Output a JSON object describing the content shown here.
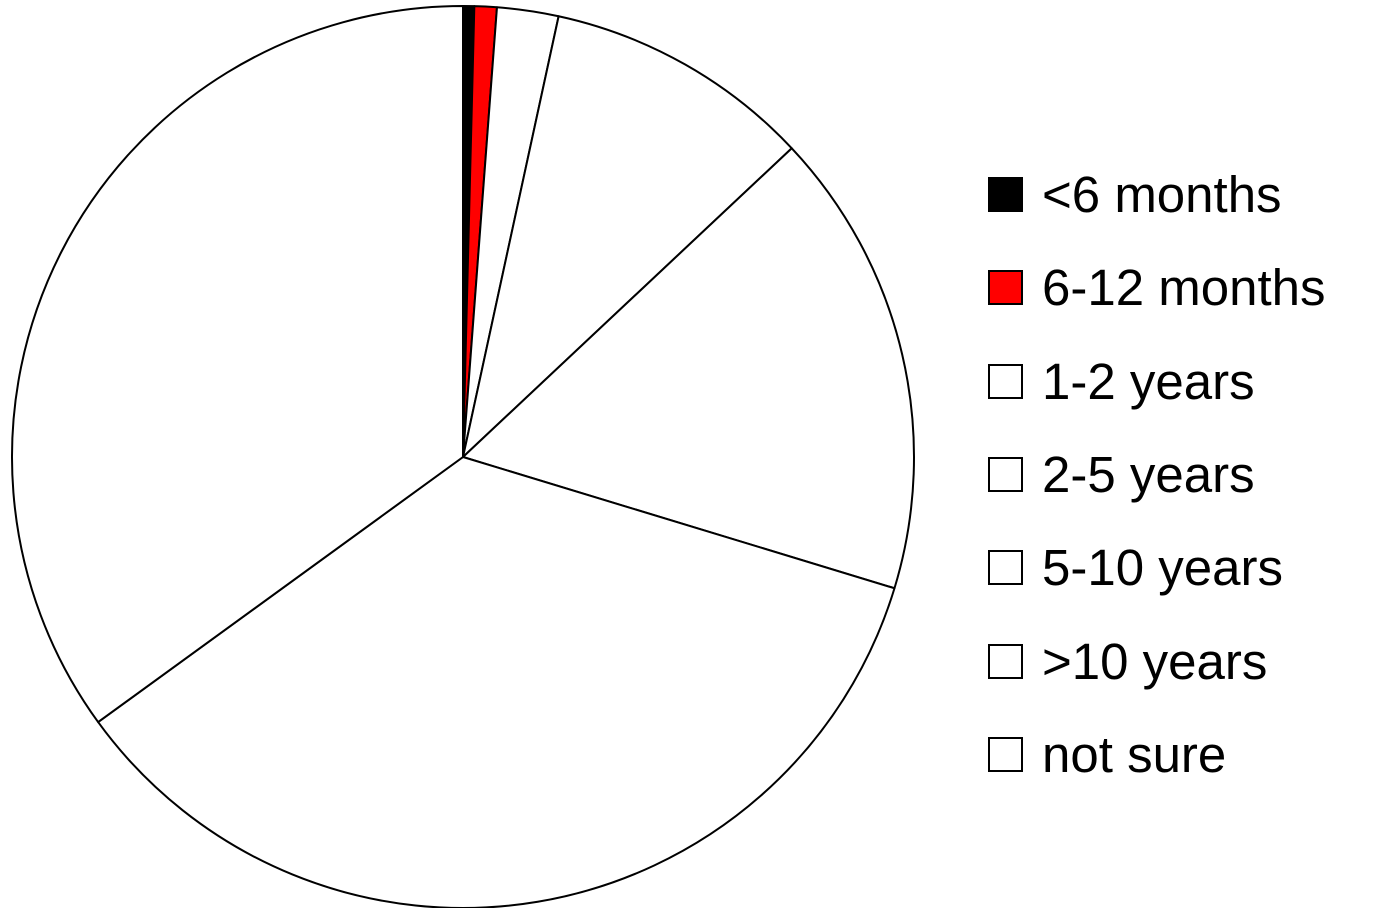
{
  "chart_data": {
    "type": "pie",
    "title": "",
    "start_angle": "12 o'clock",
    "direction": "clockwise",
    "legend_position": "right",
    "series": [
      {
        "categories": [
          "<6 months",
          "6-12 months",
          "1-2 years",
          "2-5 years",
          "5-10 years",
          ">10 years",
          "not sure"
        ],
        "values": [
          0.4,
          0.8,
          2.2,
          9.6,
          16.7,
          35.3,
          35.0
        ],
        "unit": "percent of total (estimated)",
        "colors": [
          "#000000",
          "#ff0000",
          "#ffffff",
          "#ffffff",
          "#ffffff",
          "#ffffff",
          "#ffffff"
        ]
      }
    ],
    "legend": [
      {
        "label": "<6 months",
        "color": "#000000"
      },
      {
        "label": "6-12 months",
        "color": "#ff0000"
      },
      {
        "label": "1-2 years",
        "color": "#ffffff"
      },
      {
        "label": "2-5 years",
        "color": "#ffffff"
      },
      {
        "label": "5-10 years",
        "color": "#ffffff"
      },
      {
        "label": ">10 years",
        "color": "#ffffff"
      },
      {
        "label": "not sure",
        "color": "#ffffff"
      }
    ],
    "outline_color": "#000000"
  }
}
